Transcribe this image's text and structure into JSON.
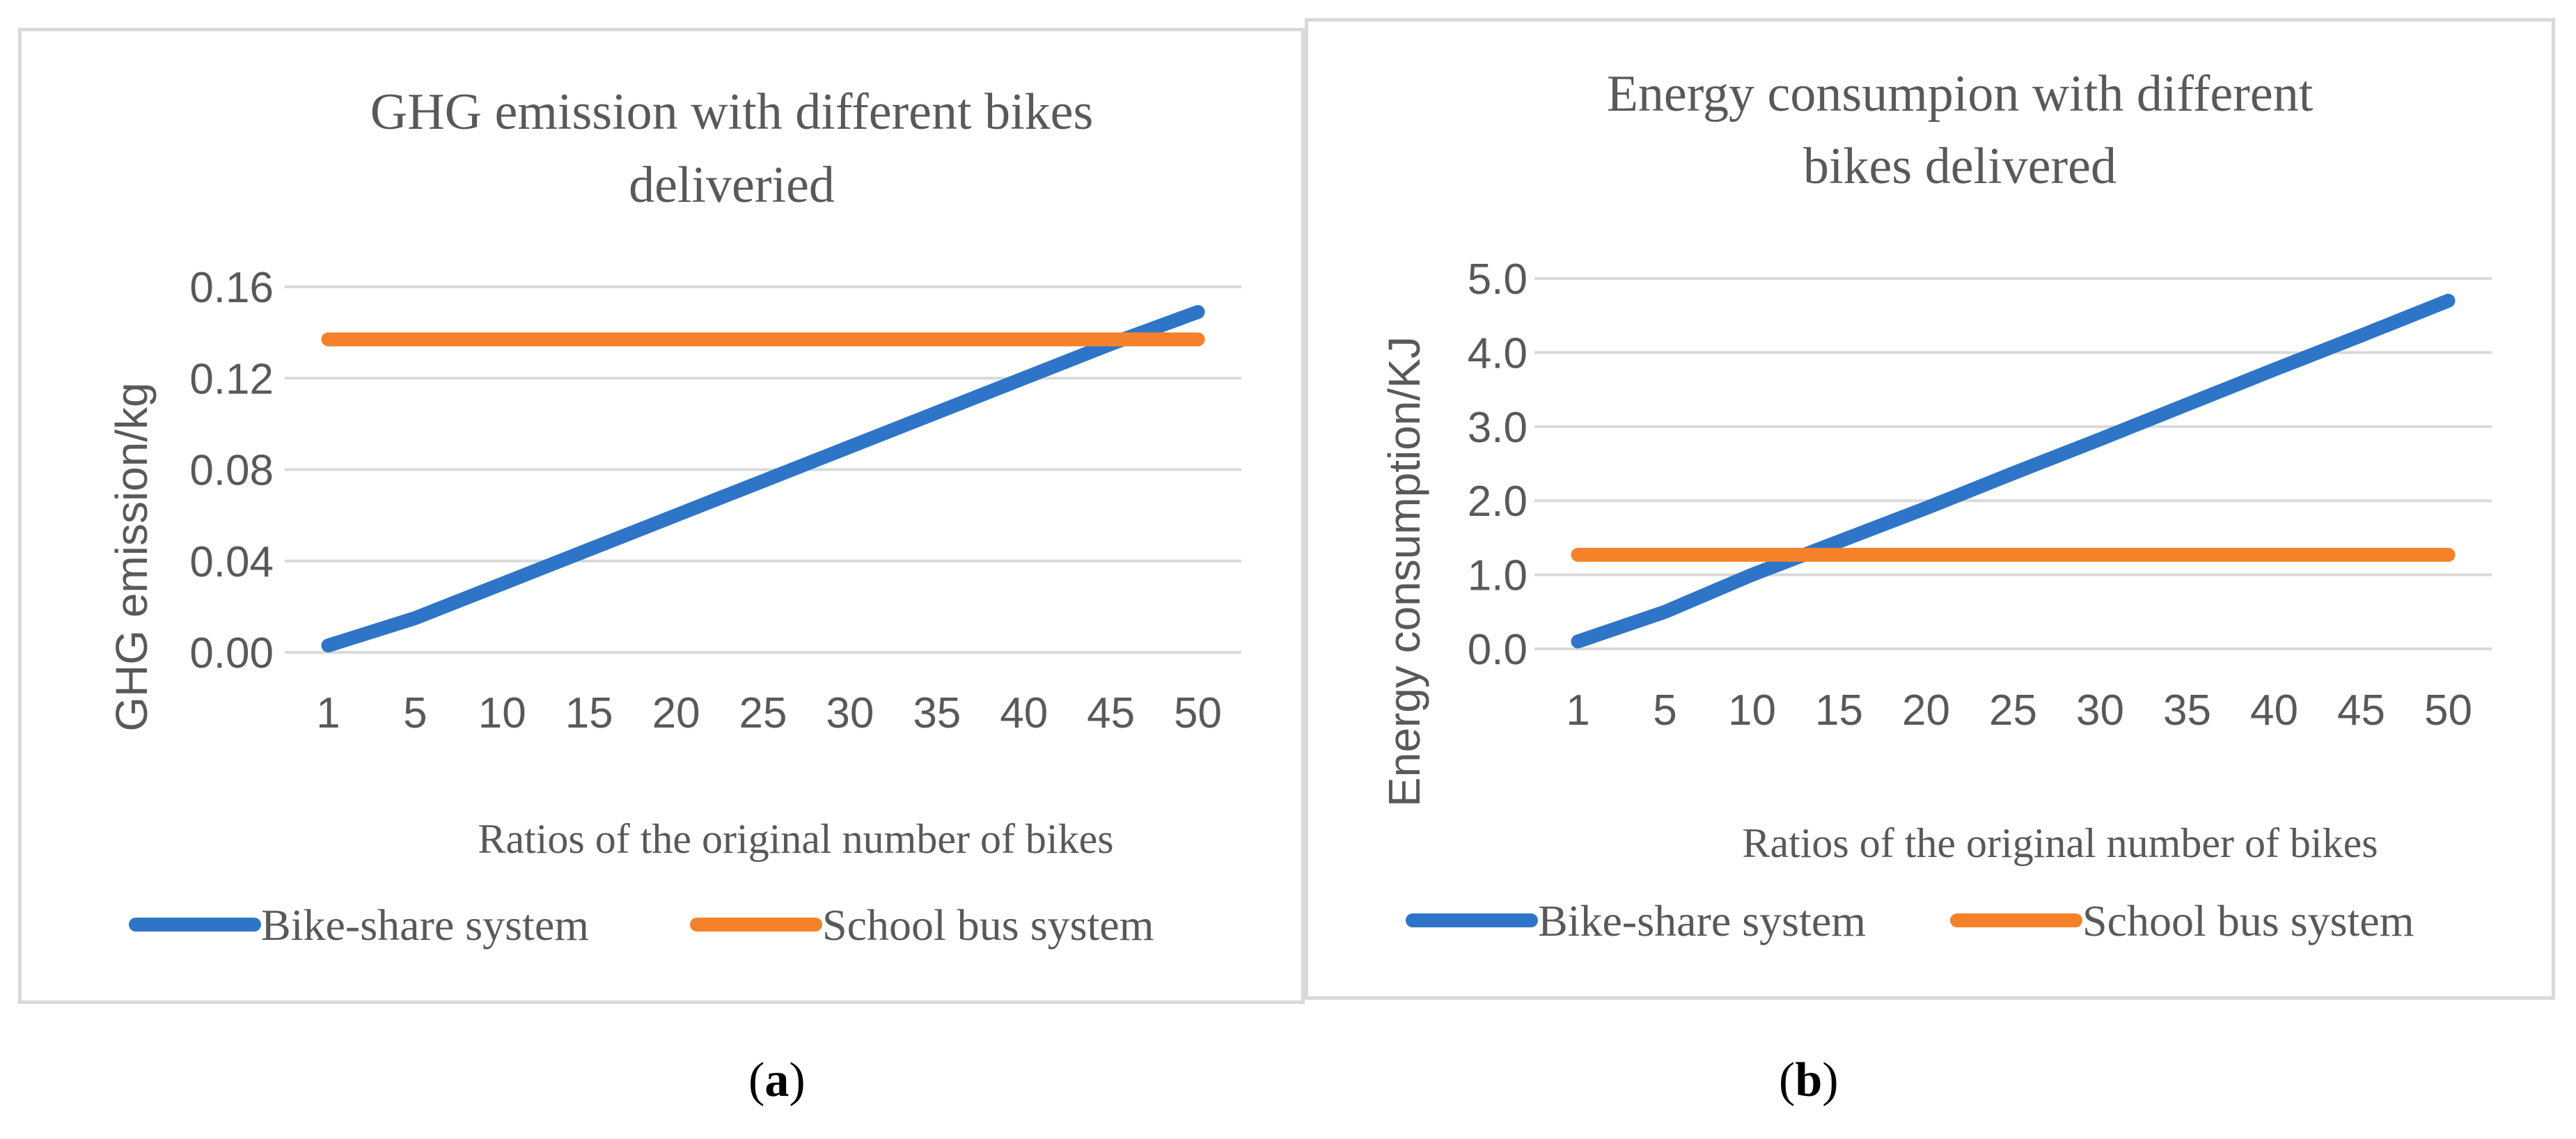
{
  "chart_data": [
    {
      "type": "line",
      "title_lines": [
        "GHG emission with different bikes",
        "deliveried"
      ],
      "xlabel": "Ratios of the original number of bikes",
      "ylabel": "GHG emission/kg",
      "categories": [
        "1",
        "5",
        "10",
        "15",
        "20",
        "25",
        "30",
        "35",
        "40",
        "45",
        "50"
      ],
      "yticks": [
        "0.00",
        "0.04",
        "0.08",
        "0.12",
        "0.16"
      ],
      "ylim": [
        0,
        0.16
      ],
      "series": [
        {
          "name": "Bike-share system",
          "color": "#2E75C8",
          "values": [
            0.003,
            0.015,
            0.03,
            0.045,
            0.06,
            0.075,
            0.09,
            0.105,
            0.12,
            0.135,
            0.149
          ]
        },
        {
          "name": "School bus system",
          "color": "#F5822A",
          "values": [
            0.137,
            0.137,
            0.137,
            0.137,
            0.137,
            0.137,
            0.137,
            0.137,
            0.137,
            0.137,
            0.137
          ]
        }
      ],
      "caption": "a"
    },
    {
      "type": "line",
      "title_lines": [
        "Energy consumpion with different",
        "bikes delivered"
      ],
      "xlabel": "Ratios of the original number of bikes",
      "ylabel": "Energy consumption/KJ",
      "categories": [
        "1",
        "5",
        "10",
        "15",
        "20",
        "25",
        "30",
        "35",
        "40",
        "45",
        "50"
      ],
      "yticks": [
        "0.0",
        "1.0",
        "2.0",
        "3.0",
        "4.0",
        "5.0"
      ],
      "ylim": [
        0,
        5
      ],
      "series": [
        {
          "name": "Bike-share system",
          "color": "#2E75C8",
          "values": [
            0.1,
            0.5,
            1.0,
            1.45,
            1.9,
            2.37,
            2.83,
            3.3,
            3.77,
            4.23,
            4.7
          ]
        },
        {
          "name": "School bus system",
          "color": "#F5822A",
          "values": [
            1.27,
            1.27,
            1.27,
            1.27,
            1.27,
            1.27,
            1.27,
            1.27,
            1.27,
            1.27,
            1.27
          ]
        }
      ],
      "caption": "b"
    }
  ]
}
